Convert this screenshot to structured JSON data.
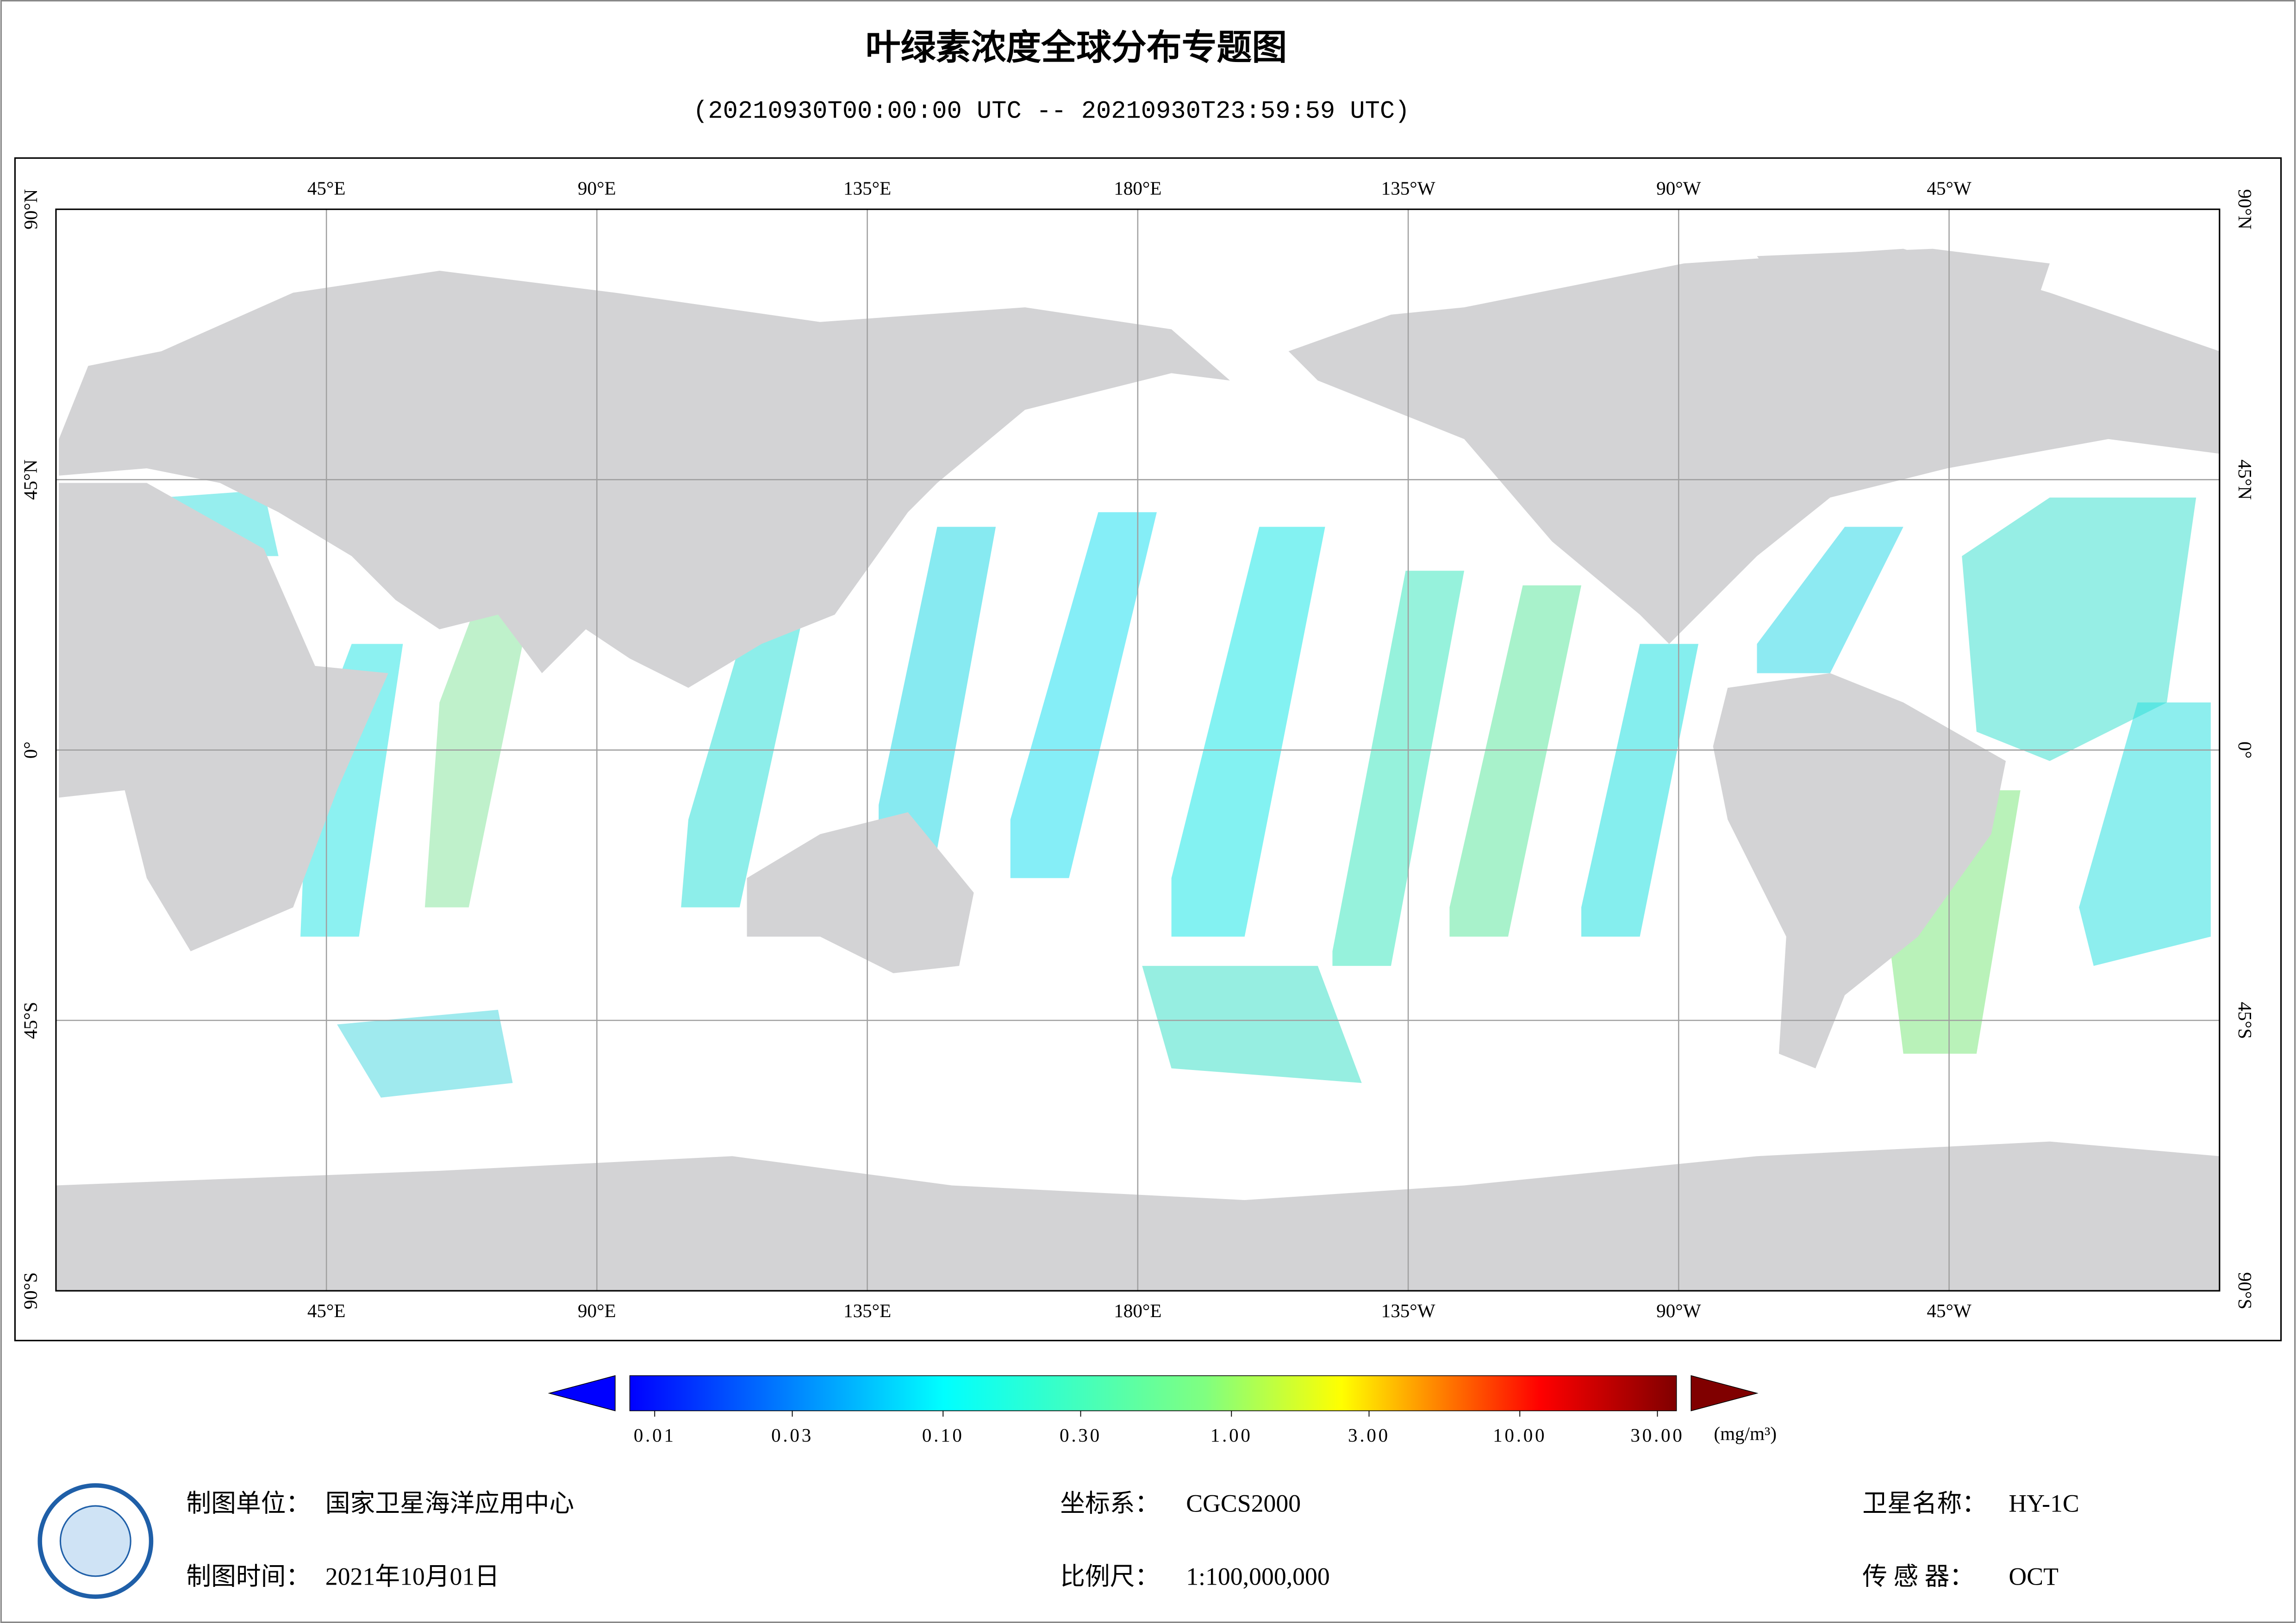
{
  "header": {
    "title": "叶绿素浓度全球分布专题图",
    "subtitle": "(20210930T00:00:00 UTC -- 20210930T23:59:59 UTC)"
  },
  "map": {
    "lonlim": [
      0,
      360
    ],
    "latlim": [
      -90,
      90
    ],
    "lon_ticks": [
      {
        "value": 45,
        "label": "45°E"
      },
      {
        "value": 90,
        "label": "90°E"
      },
      {
        "value": 135,
        "label": "135°E"
      },
      {
        "value": 180,
        "label": "180°E"
      },
      {
        "value": 225,
        "label": "135°W"
      },
      {
        "value": 270,
        "label": "90°W"
      },
      {
        "value": 315,
        "label": "45°W"
      }
    ],
    "lat_ticks": [
      {
        "value": 90,
        "label": "90°N"
      },
      {
        "value": 45,
        "label": "45°N"
      },
      {
        "value": 0,
        "label": "0°"
      },
      {
        "value": -45,
        "label": "45°S"
      },
      {
        "value": -90,
        "label": "90°S"
      }
    ]
  },
  "colorbar": {
    "log_scale": true,
    "clim": [
      0.01,
      30
    ],
    "ticks": [
      {
        "value": 0.01,
        "label": "0.01"
      },
      {
        "value": 0.03,
        "label": "0.03"
      },
      {
        "value": 0.1,
        "label": "0.10"
      },
      {
        "value": 0.3,
        "label": "0.30"
      },
      {
        "value": 1,
        "label": "1.00"
      },
      {
        "value": 3,
        "label": "3.00"
      },
      {
        "value": 10,
        "label": "10.00"
      },
      {
        "value": 30,
        "label": "30.00"
      }
    ],
    "unit": "(mg/m³)"
  },
  "footer": {
    "unit_label": "制图单位：",
    "unit_value": "国家卫星海洋应用中心",
    "crs_label": "坐标系：",
    "crs_value": "CGCS2000",
    "satellite_label": "卫星名称：",
    "satellite_value": "HY-1C",
    "date_label": "制图时间：",
    "date_value": "2021年10月01日",
    "scale_label": "比例尺：",
    "scale_value": "1:100,000,000",
    "sensor_label": "传 感 器：",
    "sensor_value": "OCT"
  }
}
